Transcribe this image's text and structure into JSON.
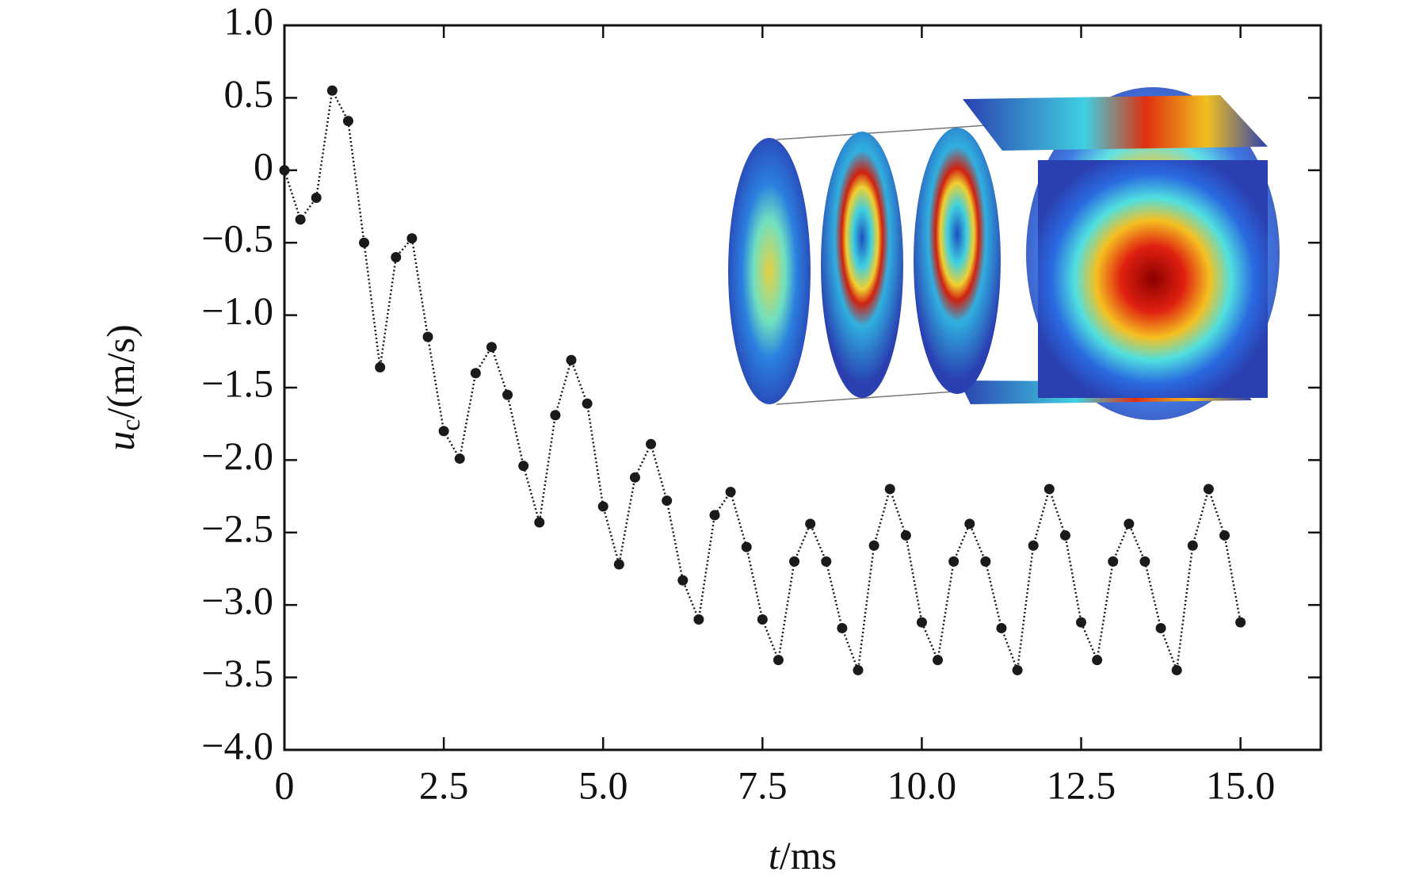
{
  "chart_data": {
    "type": "line",
    "xlabel": {
      "var": "t",
      "unit": "/ms"
    },
    "ylabel": {
      "var": "u",
      "sub": "c",
      "unit": "/(m/s)"
    },
    "x": [
      0,
      0.25,
      0.5,
      0.75,
      1.0,
      1.25,
      1.5,
      1.75,
      2.0,
      2.25,
      2.5,
      2.75,
      3.0,
      3.25,
      3.5,
      3.75,
      4.0,
      4.25,
      4.5,
      4.75,
      5.0,
      5.25,
      5.5,
      5.75,
      6.0,
      6.25,
      6.5,
      6.75,
      7.0,
      7.25,
      7.5,
      7.75,
      8.0,
      8.25,
      8.5,
      8.75,
      9.0,
      9.25,
      9.5,
      9.75,
      10.0,
      10.25,
      10.5,
      10.75,
      11.0,
      11.25,
      11.5,
      11.75,
      12.0,
      12.25,
      12.5,
      12.75,
      13.0,
      13.25,
      13.5,
      13.75,
      14.0,
      14.25,
      14.5,
      14.75,
      15.0
    ],
    "series": [
      {
        "color": "#1a1a1a",
        "values": [
          0.0,
          -0.34,
          -0.19,
          0.55,
          0.34,
          -0.5,
          -1.36,
          -0.6,
          -0.47,
          -1.15,
          -1.8,
          -1.99,
          -1.4,
          -1.22,
          -1.55,
          -2.04,
          -2.43,
          -1.69,
          -1.31,
          -1.61,
          -2.32,
          -2.72,
          -2.12,
          -1.89,
          -2.28,
          -2.83,
          -3.1,
          -2.38,
          -2.22,
          -2.6,
          -3.1,
          -3.38,
          -2.7,
          -2.44,
          -2.7,
          -3.16,
          -3.45,
          -2.59,
          -2.2,
          -2.52,
          -3.12,
          -3.38,
          -2.7,
          -2.44,
          -2.7,
          -3.16,
          -3.45,
          -2.59,
          -2.2,
          -2.52,
          -3.12,
          -3.38,
          -2.7,
          -2.44,
          -2.7,
          -3.16,
          -3.45,
          -2.59,
          -2.2,
          -2.52,
          -3.12
        ]
      }
    ],
    "xlim": [
      0,
      16.26
    ],
    "ylim": [
      -4.0,
      1.0
    ],
    "xticks": [
      0,
      2.5,
      {
        "value": 5.0,
        "label": "5.0"
      },
      7.5,
      {
        "value": 10.0,
        "label": "10.0"
      },
      12.5,
      {
        "value": 15.0,
        "label": "15.0"
      }
    ],
    "yticks": [
      {
        "value": 1.0,
        "label": "1.0"
      },
      0.5,
      0,
      {
        "value": -0.5,
        "label": "−0.5"
      },
      {
        "value": -1.0,
        "label": "−1.0"
      },
      {
        "value": -1.5,
        "label": "−1.5"
      },
      {
        "value": -2.0,
        "label": "−2.0"
      },
      {
        "value": -2.5,
        "label": "−2.5"
      },
      {
        "value": -3.0,
        "label": "−3.0"
      },
      {
        "value": -3.5,
        "label": "−3.5"
      },
      {
        "value": -4.0,
        "label": "−4.0"
      }
    ],
    "grid": false
  }
}
